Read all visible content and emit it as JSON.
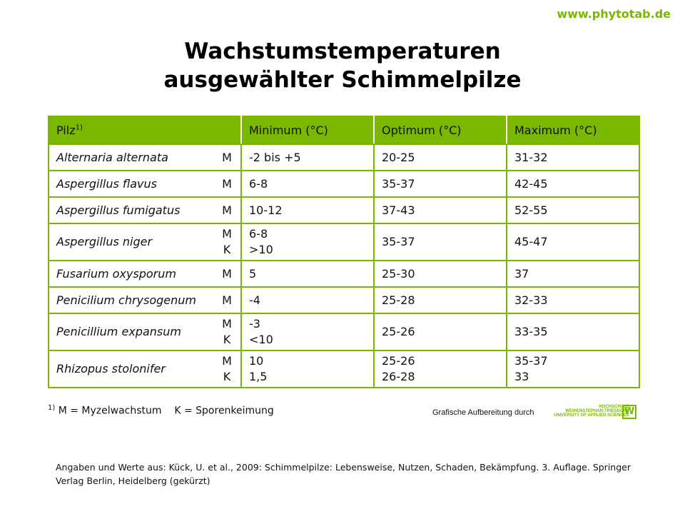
{
  "url": "www.phytotab.de",
  "title": [
    "Wachstumstemperaturen",
    "ausgewählter Schimmelpilze"
  ],
  "headers": {
    "pilz": "Pilz",
    "pilz_sup": "1)",
    "min": "Minimum (°C)",
    "opt": "Optimum (°C)",
    "max": "Maximum (°C)"
  },
  "rows": [
    {
      "name": "Alternaria alternata",
      "type": [
        "M"
      ],
      "min": [
        "-2 bis +5"
      ],
      "opt": [
        "20-25"
      ],
      "max": [
        "31-32"
      ]
    },
    {
      "name": "Aspergillus flavus",
      "type": [
        "M"
      ],
      "min": [
        "6-8"
      ],
      "opt": [
        "35-37"
      ],
      "max": [
        "42-45"
      ]
    },
    {
      "name": "Aspergillus fumigatus",
      "type": [
        "M"
      ],
      "min": [
        "10-12"
      ],
      "opt": [
        "37-43"
      ],
      "max": [
        "52-55"
      ]
    },
    {
      "name": "Aspergillus niger",
      "type": [
        "M",
        "K"
      ],
      "min": [
        "6-8",
        ">10"
      ],
      "opt": [
        "35-37"
      ],
      "max": [
        "45-47"
      ]
    },
    {
      "name": "Fusarium oxysporum",
      "type": [
        "M"
      ],
      "min": [
        "5"
      ],
      "opt": [
        "25-30"
      ],
      "max": [
        "37"
      ]
    },
    {
      "name": "Penicilium chrysogenum",
      "type": [
        "M"
      ],
      "min": [
        "-4"
      ],
      "opt": [
        "25-28"
      ],
      "max": [
        "32-33"
      ]
    },
    {
      "name": "Penicillium expansum",
      "type": [
        "M",
        "K"
      ],
      "min": [
        "-3",
        "<10"
      ],
      "opt": [
        "25-26"
      ],
      "max": [
        "33-35"
      ]
    },
    {
      "name": "Rhizopus stolonifer",
      "type": [
        "M",
        "K"
      ],
      "min": [
        "10",
        "1,5"
      ],
      "opt": [
        "25-26",
        "26-28"
      ],
      "max": [
        "35-37",
        "33"
      ]
    }
  ],
  "footnote": {
    "sup": "1)",
    "text": "M = Myzelwachstum    K = Sporenkeimung"
  },
  "credit": "Grafische Aufbereitung durch",
  "logo": {
    "line1": "HOCHSCHULE",
    "line2": "WEIHENSTEPHAN-TRIESDORF",
    "line3": "UNIVERSITY OF APPLIED SCIENCES",
    "mark": "W"
  },
  "source": "Angaben und Werte aus: Kück, U. et al., 2009: Schimmelpilze: Lebensweise, Nutzen, Schaden, Bekämpfung. 3. Auflage. Springer Verlag Berlin, Heidelberg (gekürzt)"
}
